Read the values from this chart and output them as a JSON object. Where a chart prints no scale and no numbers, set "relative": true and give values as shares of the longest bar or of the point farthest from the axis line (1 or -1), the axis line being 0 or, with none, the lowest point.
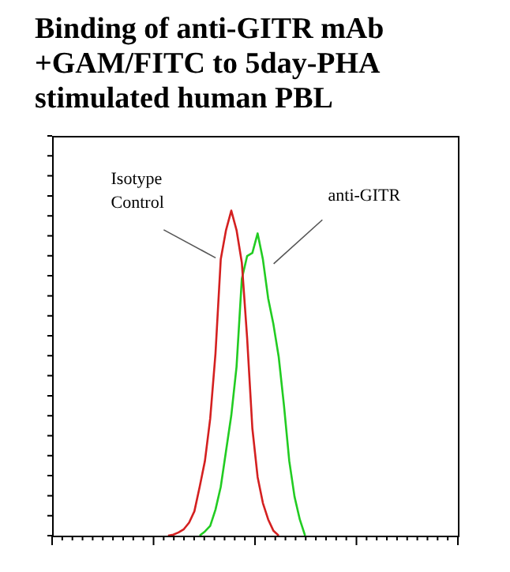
{
  "chart_data": {
    "type": "line",
    "title": "Binding of anti-GITR mAb +GAM/FITC to 5day-PHA stimulated human PBL",
    "relative": true,
    "legend": false,
    "marker": "none",
    "categories": [
      null,
      null,
      null,
      null,
      null,
      null,
      null,
      null,
      null,
      null,
      null,
      null,
      null,
      null,
      null,
      null,
      null,
      null,
      null,
      null,
      null,
      null,
      null,
      null,
      null,
      null,
      null,
      null,
      null,
      null,
      null,
      null,
      null,
      null,
      null,
      null,
      null,
      null,
      null,
      null,
      null,
      null,
      null,
      null,
      null,
      null,
      null,
      null,
      null,
      null,
      null,
      null,
      null,
      null,
      null,
      null,
      null,
      null,
      null,
      null,
      null,
      null,
      null,
      null,
      null,
      null,
      null,
      null,
      null,
      null,
      null,
      null,
      null,
      null,
      null,
      null,
      null,
      null
    ],
    "series": [
      {
        "color": "#d42020",
        "values": [
          null,
          null,
          null,
          null,
          null,
          null,
          null,
          null,
          null,
          null,
          null,
          null,
          null,
          null,
          null,
          null,
          null,
          null,
          null,
          null,
          null,
          null,
          0,
          0.003,
          0.01,
          0.02,
          0.04,
          0.075,
          0.15,
          0.23,
          0.36,
          0.56,
          0.85,
          0.94,
          1,
          0.94,
          0.84,
          0.61,
          0.33,
          0.18,
          0.1,
          0.05,
          0.015,
          0,
          null,
          null,
          null,
          null,
          null,
          null,
          null,
          null,
          null,
          null,
          null,
          null,
          null,
          null,
          null,
          null,
          null,
          null,
          null,
          null,
          null,
          null,
          null,
          null,
          null,
          null,
          null,
          null,
          null,
          null,
          null,
          null,
          null,
          null
        ]
      },
      {
        "color": "#22cc22",
        "values": [
          null,
          null,
          null,
          null,
          null,
          null,
          null,
          null,
          null,
          null,
          null,
          null,
          null,
          null,
          null,
          null,
          null,
          null,
          null,
          null,
          null,
          null,
          null,
          null,
          null,
          null,
          null,
          null,
          0,
          0.013,
          0.03,
          0.08,
          0.15,
          0.26,
          0.37,
          0.52,
          0.79,
          0.86,
          0.87,
          0.93,
          0.85,
          0.73,
          0.65,
          0.55,
          0.4,
          0.23,
          0.12,
          0.05,
          0,
          null,
          null,
          null,
          null,
          null,
          null,
          null,
          null,
          null,
          null,
          null,
          null,
          null,
          null,
          null,
          null,
          null,
          null,
          null,
          null,
          null,
          null,
          null,
          null,
          null,
          null,
          null,
          null,
          null
        ]
      }
    ],
    "annotations": [
      "Isotype Control",
      "anti-GITR"
    ]
  }
}
